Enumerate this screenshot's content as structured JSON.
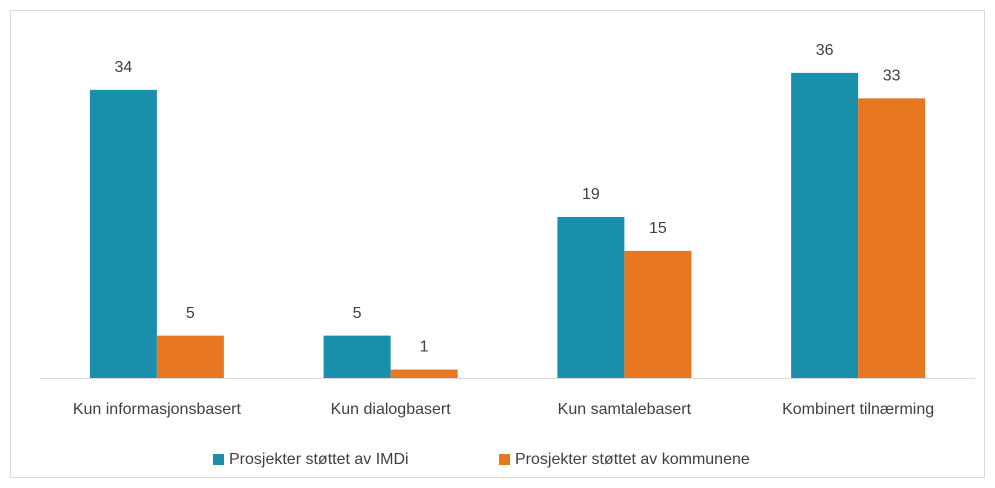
{
  "chart_data": {
    "type": "bar",
    "categories": [
      "Kun informasjonsbasert",
      "Kun dialogbasert",
      "Kun samtalebasert",
      "Kombinert tilnærming"
    ],
    "series": [
      {
        "name": "Prosjekter støttet av IMDi",
        "color": "#1a8fac",
        "values": [
          34,
          5,
          19,
          36
        ]
      },
      {
        "name": "Prosjekter støttet av kommunene",
        "color": "#e87722",
        "values": [
          5,
          1,
          15,
          33
        ]
      }
    ],
    "ylim": [
      0,
      40
    ],
    "legend": "bottom"
  }
}
